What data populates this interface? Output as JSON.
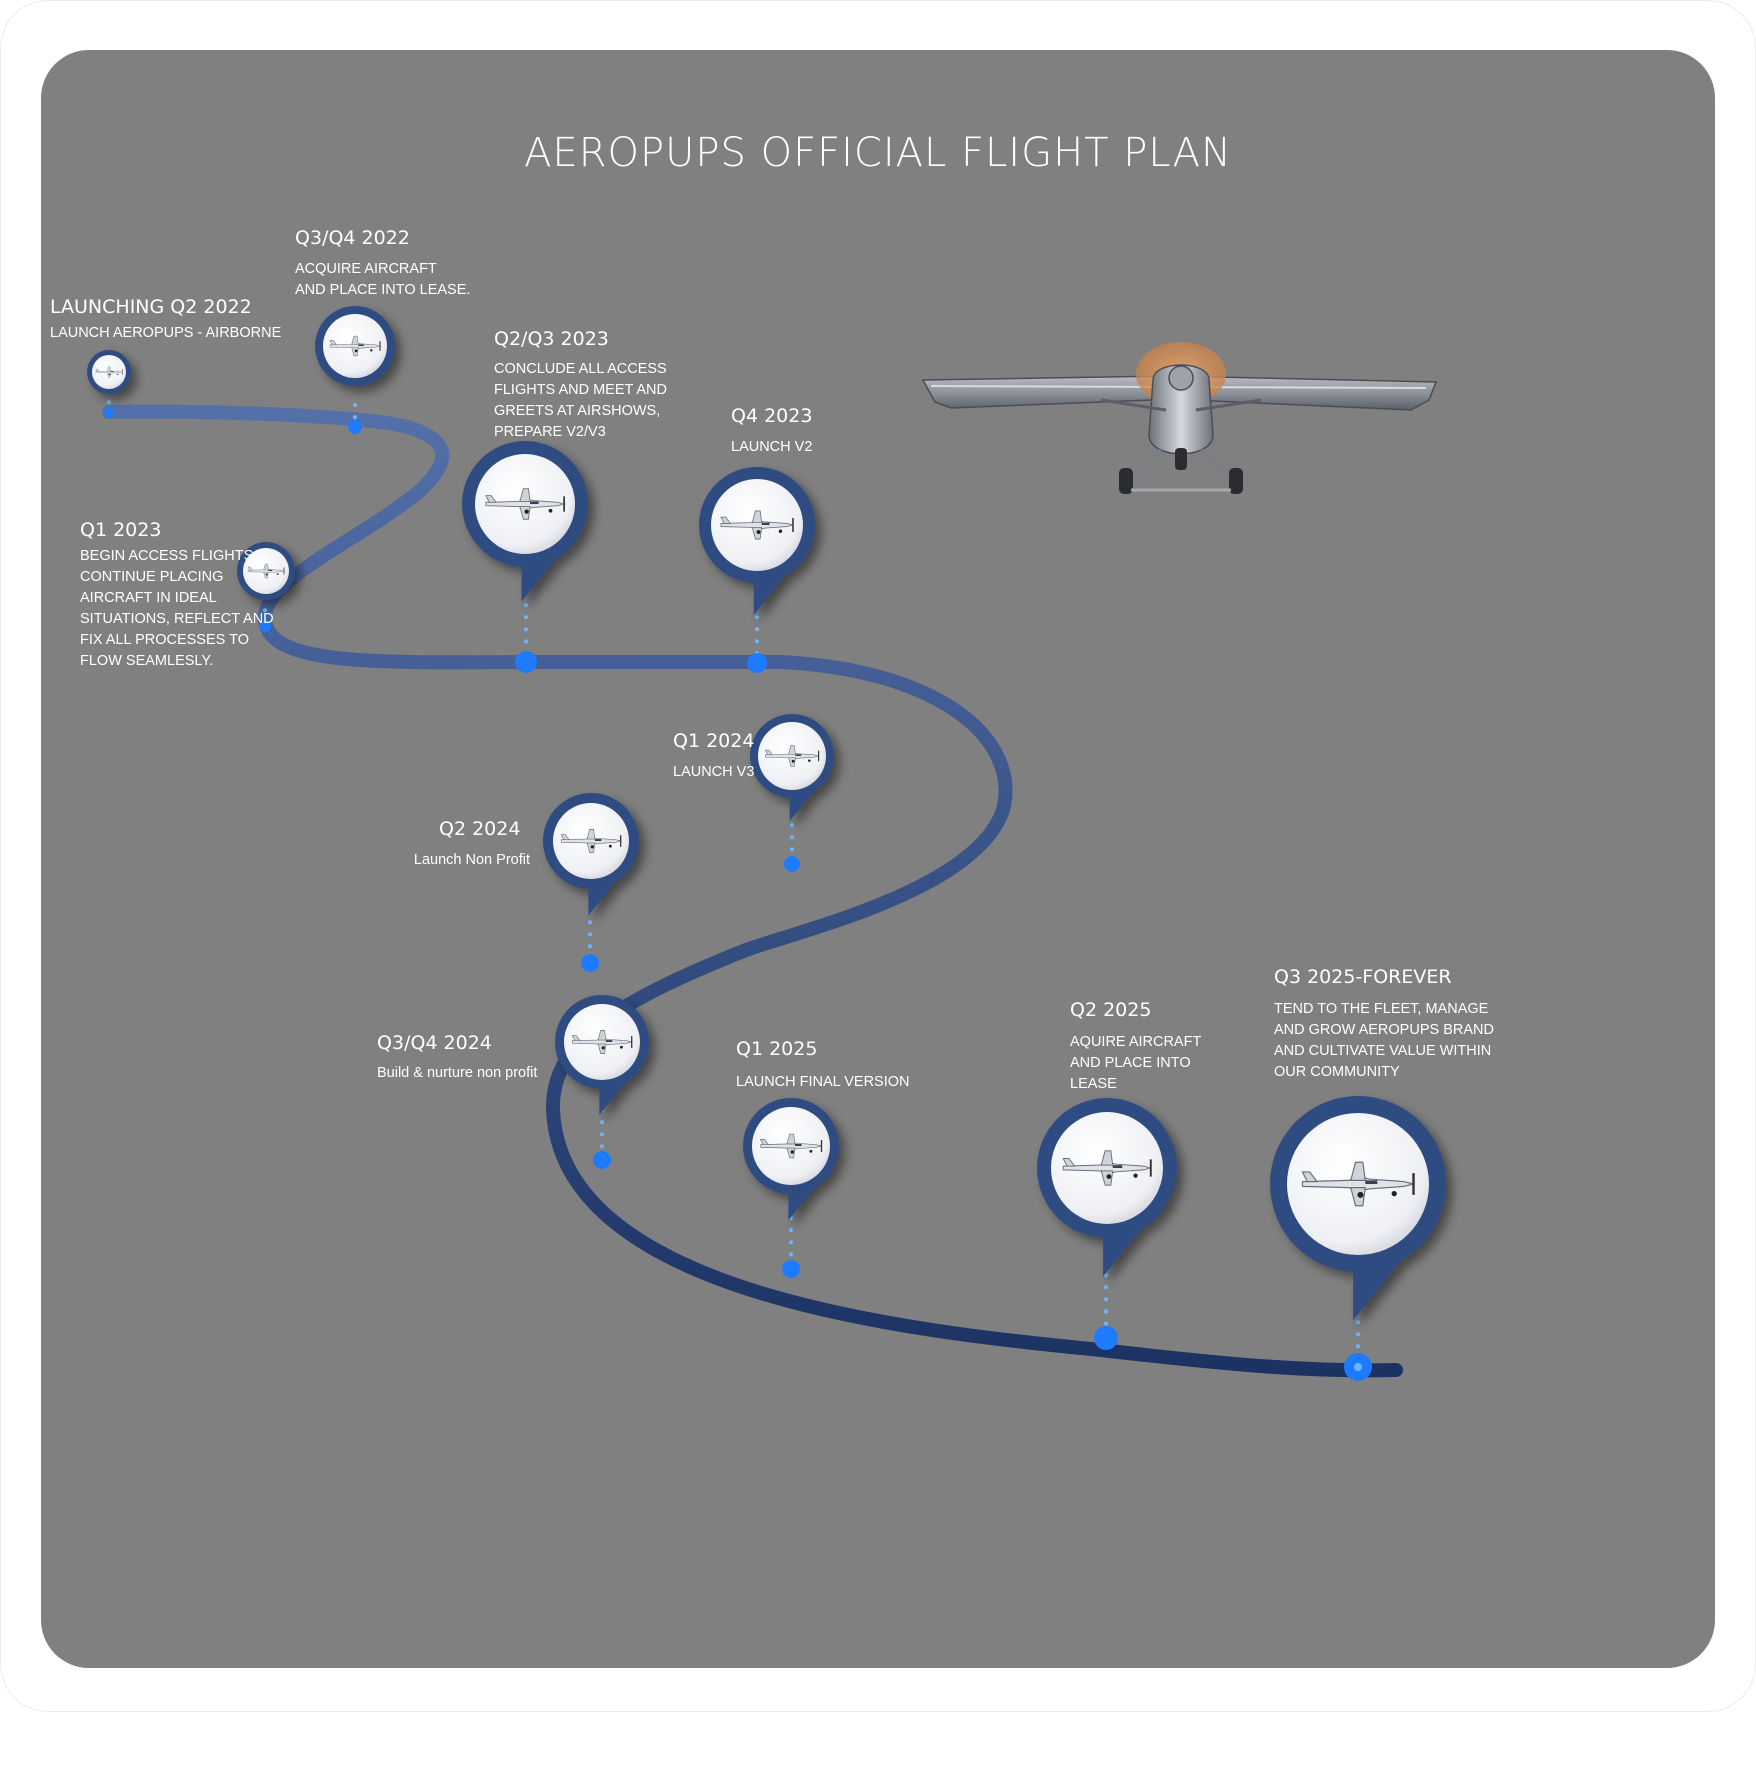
{
  "title": "AEROPUPS OFFICIAL FLIGHT PLAN",
  "colors": {
    "background": "#808080",
    "road_start": "#4f6aa3",
    "road_end": "#1d3566",
    "dot": "#1e7bff",
    "dotted_line": "#6ab6ff",
    "pin": "#2f4c82"
  },
  "milestones": [
    {
      "title": "LAUNCHING Q2 2022",
      "desc": "LAUNCH AEROPUPS - AIRBORNE",
      "icon": "airplane-icon"
    },
    {
      "title": "Q3/Q4 2022",
      "desc": "ACQUIRE AIRCRAFT\nAND PLACE INTO LEASE.",
      "icon": "airplane-icon"
    },
    {
      "title": "Q1 2023",
      "desc": "BEGIN ACCESS FLIGHTS.\nCONTINUE PLACING\nAIRCRAFT IN IDEAL\nSITUATIONS, REFLECT AND\nFIX ALL PROCESSES TO\nFLOW SEAMLESLY.",
      "icon": "airplane-icon"
    },
    {
      "title": "Q2/Q3 2023",
      "desc": "CONCLUDE ALL ACCESS\nFLIGHTS AND MEET AND\nGREETS AT AIRSHOWS,\nPREPARE V2/V3",
      "icon": "airplane-icon"
    },
    {
      "title": "Q4 2023",
      "desc": "LAUNCH V2",
      "icon": "airplane-icon"
    },
    {
      "title": "Q1 2024",
      "desc": "LAUNCH V3",
      "icon": "airplane-icon"
    },
    {
      "title": "Q2 2024",
      "desc": "Launch Non Profit",
      "icon": "airplane-icon"
    },
    {
      "title": "Q3/Q4 2024",
      "desc": "Build & nurture non profit",
      "icon": "airplane-icon"
    },
    {
      "title": "Q1 2025",
      "desc": "LAUNCH FINAL VERSION",
      "icon": "airplane-icon"
    },
    {
      "title": "Q2 2025",
      "desc": "AQUIRE AIRCRAFT\nAND PLACE INTO\nLEASE",
      "icon": "airplane-icon"
    },
    {
      "title": "Q3 2025-FOREVER",
      "desc": "TEND TO THE FLEET, MANAGE\nAND GROW AEROPUPS BRAND\nAND CULTIVATE VALUE WITHIN\nOUR COMMUNITY",
      "icon": "airplane-icon"
    }
  ],
  "hero_image": "propeller-airplane-icon"
}
